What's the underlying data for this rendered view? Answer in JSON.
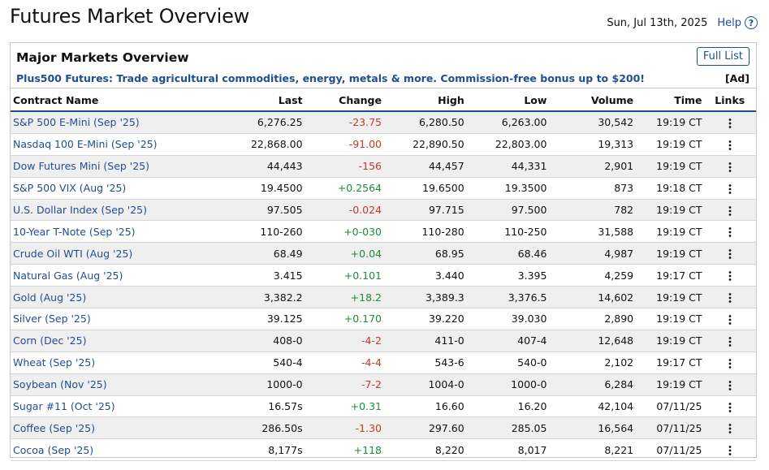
{
  "header": {
    "title": "Futures Market Overview",
    "date": "Sun, Jul 13th, 2025",
    "help_label": "Help",
    "help_icon": "question-circle-icon"
  },
  "panel": {
    "title": "Major Markets Overview",
    "full_list_label": "Full List",
    "ad_text": "Plus500 Futures: Trade agricultural commodities, energy, metals & more. Commission-free bonus up to $200!",
    "ad_tag": "[Ad]"
  },
  "colors": {
    "link": "#1f4e91",
    "negative": "#c0392b",
    "positive": "#1e8a3a",
    "row_shade": "#efefef"
  },
  "table": {
    "columns": [
      "Contract Name",
      "Last",
      "Change",
      "High",
      "Low",
      "Volume",
      "Time",
      "Links"
    ],
    "links_icon": "more-vertical-icon",
    "rows": [
      {
        "name": "S&P 500 E-Mini (Sep '25)",
        "last": "6,276.25",
        "change": "-23.75",
        "high": "6,280.50",
        "low": "6,263.00",
        "volume": "30,542",
        "time": "19:19 CT"
      },
      {
        "name": "Nasdaq 100 E-Mini (Sep '25)",
        "last": "22,868.00",
        "change": "-91.00",
        "high": "22,890.50",
        "low": "22,803.00",
        "volume": "19,313",
        "time": "19:19 CT"
      },
      {
        "name": "Dow Futures Mini (Sep '25)",
        "last": "44,443",
        "change": "-156",
        "high": "44,457",
        "low": "44,331",
        "volume": "2,901",
        "time": "19:19 CT"
      },
      {
        "name": "S&P 500 VIX (Aug '25)",
        "last": "19.4500",
        "change": "+0.2564",
        "high": "19.6500",
        "low": "19.3500",
        "volume": "873",
        "time": "19:18 CT"
      },
      {
        "name": "U.S. Dollar Index (Sep '25)",
        "last": "97.505",
        "change": "-0.024",
        "high": "97.715",
        "low": "97.500",
        "volume": "782",
        "time": "19:19 CT"
      },
      {
        "name": "10-Year T-Note (Sep '25)",
        "last": "110-260",
        "change": "+0-030",
        "high": "110-280",
        "low": "110-250",
        "volume": "31,588",
        "time": "19:19 CT"
      },
      {
        "name": "Crude Oil WTI (Aug '25)",
        "last": "68.49",
        "change": "+0.04",
        "high": "68.95",
        "low": "68.46",
        "volume": "4,987",
        "time": "19:19 CT"
      },
      {
        "name": "Natural Gas (Aug '25)",
        "last": "3.415",
        "change": "+0.101",
        "high": "3.440",
        "low": "3.395",
        "volume": "4,259",
        "time": "19:17 CT"
      },
      {
        "name": "Gold (Aug '25)",
        "last": "3,382.2",
        "change": "+18.2",
        "high": "3,389.3",
        "low": "3,376.5",
        "volume": "14,602",
        "time": "19:19 CT"
      },
      {
        "name": "Silver (Sep '25)",
        "last": "39.125",
        "change": "+0.170",
        "high": "39.220",
        "low": "39.030",
        "volume": "2,890",
        "time": "19:19 CT"
      },
      {
        "name": "Corn (Dec '25)",
        "last": "408-0",
        "change": "-4-2",
        "high": "411-0",
        "low": "407-4",
        "volume": "12,648",
        "time": "19:19 CT"
      },
      {
        "name": "Wheat (Sep '25)",
        "last": "540-4",
        "change": "-4-4",
        "high": "543-6",
        "low": "540-0",
        "volume": "2,102",
        "time": "19:17 CT"
      },
      {
        "name": "Soybean (Nov '25)",
        "last": "1000-0",
        "change": "-7-2",
        "high": "1004-0",
        "low": "1000-0",
        "volume": "6,284",
        "time": "19:19 CT"
      },
      {
        "name": "Sugar #11 (Oct '25)",
        "last": "16.57s",
        "change": "+0.31",
        "high": "16.60",
        "low": "16.20",
        "volume": "42,104",
        "time": "07/11/25"
      },
      {
        "name": "Coffee (Sep '25)",
        "last": "286.50s",
        "change": "-1.30",
        "high": "297.60",
        "low": "285.05",
        "volume": "16,564",
        "time": "07/11/25"
      },
      {
        "name": "Cocoa (Sep '25)",
        "last": "8,177s",
        "change": "+118",
        "high": "8,220",
        "low": "8,017",
        "volume": "8,221",
        "time": "07/11/25"
      }
    ]
  }
}
